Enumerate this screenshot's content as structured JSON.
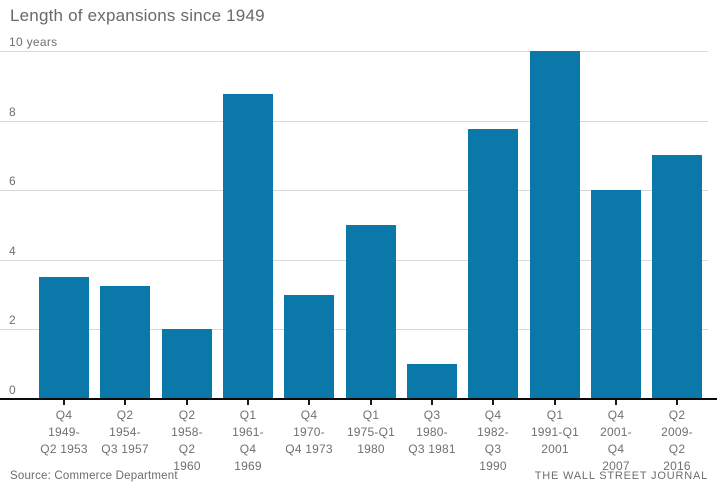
{
  "title": "Length of expansions since 1949",
  "chart_data": {
    "type": "bar",
    "title": "Length of expansions since 1949",
    "unit": "years",
    "categories": [
      "Q4 1949-Q2 1953",
      "Q2 1954-Q3 1957",
      "Q2 1958-Q2 1960",
      "Q1 1961-Q4 1969",
      "Q4 1970-Q4 1973",
      "Q1 1975-Q1 1980",
      "Q3 1980-Q3 1981",
      "Q4 1982-Q3 1990",
      "Q1 1991-Q1 2001",
      "Q4 2001-Q4 2007",
      "Q2 2009-Q2 2016"
    ],
    "category_lines": [
      [
        "Q4",
        "1949-",
        "Q2 1953"
      ],
      [
        "Q2",
        "1954-",
        "Q3 1957"
      ],
      [
        "Q2",
        "1958-",
        "Q2",
        "1960"
      ],
      [
        "Q1",
        "1961-",
        "Q4",
        "1969"
      ],
      [
        "Q4",
        "1970-",
        "Q4 1973"
      ],
      [
        "Q1",
        "1975-Q1",
        "1980"
      ],
      [
        "Q3",
        "1980-",
        "Q3 1981"
      ],
      [
        "Q4",
        "1982-",
        "Q3",
        "1990"
      ],
      [
        "Q1",
        "1991-Q1",
        "2001"
      ],
      [
        "Q4",
        "2001-",
        "Q4",
        "2007"
      ],
      [
        "Q2",
        "2009-",
        "Q2",
        "2016"
      ]
    ],
    "values": [
      3.5,
      3.25,
      2,
      8.75,
      3,
      5,
      1,
      7.75,
      10,
      6,
      7
    ],
    "ylim": [
      0,
      10
    ],
    "y_ticks": [
      {
        "value": 10,
        "label": "10 years"
      },
      {
        "value": 8,
        "label": "8"
      },
      {
        "value": 6,
        "label": "6"
      },
      {
        "value": 4,
        "label": "4"
      },
      {
        "value": 2,
        "label": "2"
      },
      {
        "value": 0,
        "label": "0"
      }
    ],
    "grid": true,
    "legend": false,
    "bar_color": "#0a79aa",
    "xlabel": "",
    "ylabel": "years",
    "source": "Source: Commerce Department",
    "brand": "THE WALL STREET JOURNAL"
  }
}
